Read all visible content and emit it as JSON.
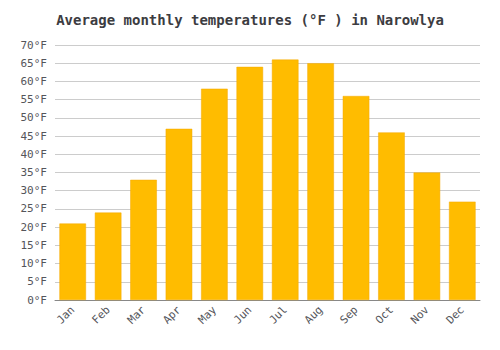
{
  "chart_data": {
    "type": "bar",
    "title": "Average monthly temperatures (°F ) in Narowlya",
    "categories": [
      "Jan",
      "Feb",
      "Mar",
      "Apr",
      "May",
      "Jun",
      "Jul",
      "Aug",
      "Sep",
      "Oct",
      "Nov",
      "Dec"
    ],
    "values": [
      21,
      24,
      33,
      47,
      58,
      64,
      66,
      65,
      56,
      46,
      35,
      27
    ],
    "color": "#FFBC00",
    "ylim": [
      0,
      70
    ],
    "yticks": [
      {
        "value": 0,
        "label": "0°F"
      },
      {
        "value": 5,
        "label": "5°F"
      },
      {
        "value": 10,
        "label": "10°F"
      },
      {
        "value": 15,
        "label": "15°F"
      },
      {
        "value": 20,
        "label": "20°F"
      },
      {
        "value": 25,
        "label": "25°F"
      },
      {
        "value": 30,
        "label": "30°F"
      },
      {
        "value": 35,
        "label": "35°F"
      },
      {
        "value": 40,
        "label": "40°F"
      },
      {
        "value": 45,
        "label": "45°F"
      },
      {
        "value": 50,
        "label": "50°F"
      },
      {
        "value": 55,
        "label": "55°F"
      },
      {
        "value": 60,
        "label": "60°F"
      },
      {
        "value": 65,
        "label": "65°F"
      },
      {
        "value": 70,
        "label": "70°F"
      }
    ],
    "grid": true
  }
}
